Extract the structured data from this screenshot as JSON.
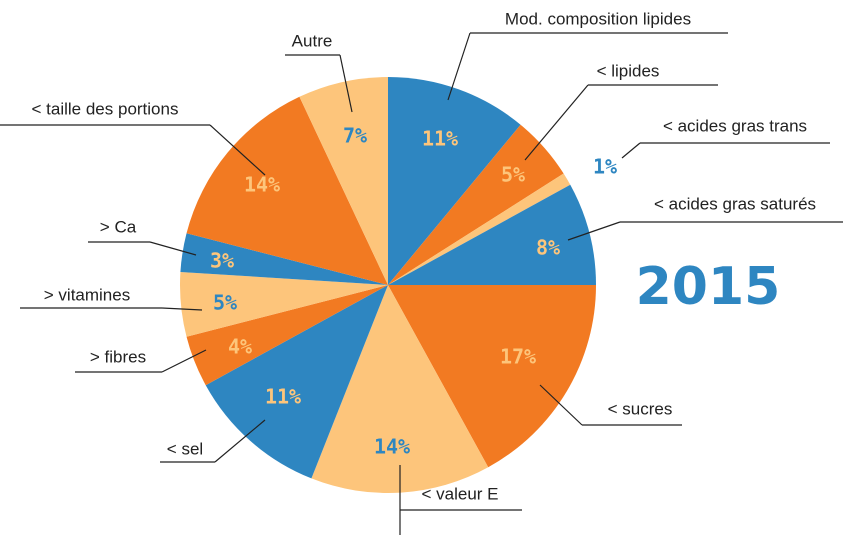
{
  "chart_data": {
    "type": "pie",
    "title": "2015",
    "categories": [
      "Mod. composition lipides",
      "< lipides",
      "< acides gras trans",
      "< acides gras saturés",
      "< sucres",
      "< valeur E",
      "< sel",
      "> fibres",
      "> vitamines",
      "> Ca",
      "< taille des portions",
      "Autre"
    ],
    "values": [
      11,
      5,
      1,
      8,
      17,
      14,
      11,
      4,
      5,
      3,
      14,
      7
    ],
    "value_labels": [
      "11%",
      "5%",
      "1%",
      "8%",
      "17%",
      "14%",
      "11%",
      "4%",
      "5%",
      "3%",
      "14%",
      "7%"
    ],
    "colors": [
      "#2e86c1",
      "#f27a22",
      "#fdc57b",
      "#2e86c1",
      "#f27a22",
      "#fdc57b",
      "#2e86c1",
      "#f27a22",
      "#fdc57b",
      "#2e86c1",
      "#f27a22",
      "#fdc57b"
    ]
  }
}
